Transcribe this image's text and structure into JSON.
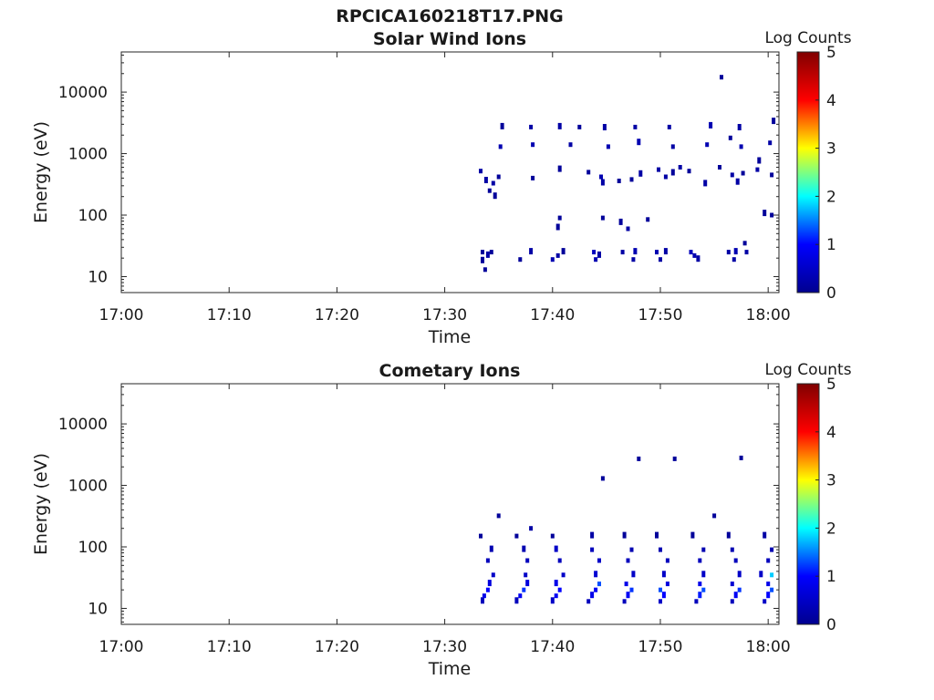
{
  "figure": {
    "title": "RPCICA160218T17.PNG"
  },
  "chart_data": [
    {
      "type": "heatmap",
      "title": "Solar Wind Ions",
      "xlabel": "Time",
      "ylabel": "Energy (eV)",
      "x_range": [
        "17:00",
        "18:01"
      ],
      "x_ticks": [
        "17:00",
        "17:10",
        "17:20",
        "17:30",
        "17:40",
        "17:50",
        "18:00"
      ],
      "y_scale": "log",
      "y_range": [
        5.5,
        45000
      ],
      "y_ticks": [
        "10",
        "100",
        "1000",
        "10000"
      ],
      "colorbar": {
        "label": "Log Counts",
        "range": [
          0,
          5
        ],
        "ticks": [
          "0",
          "1",
          "2",
          "3",
          "4",
          "5"
        ]
      },
      "colormap": [
        "#00008f",
        "#0000ff",
        "#00ffff",
        "#ffff00",
        "#ff0000",
        "#800000"
      ],
      "cells": [
        [
          "17:33:30",
          18,
          0.1
        ],
        [
          "17:33:30",
          25,
          0.1
        ],
        [
          "17:33:45",
          13,
          0.1
        ],
        [
          "17:34:00",
          22,
          0.2
        ],
        [
          "17:34:20",
          25,
          0.1
        ],
        [
          "17:37:00",
          19,
          0.1
        ],
        [
          "17:38:00",
          25,
          0.2
        ],
        [
          "17:40:00",
          19,
          0.3
        ],
        [
          "17:40:30",
          22,
          0.2
        ],
        [
          "17:41:00",
          25,
          0.1
        ],
        [
          "17:43:50",
          25,
          0.4
        ],
        [
          "17:44:00",
          19,
          0.3
        ],
        [
          "17:44:20",
          22,
          0.2
        ],
        [
          "17:46:30",
          25,
          0.2
        ],
        [
          "17:47:30",
          19,
          0.2
        ],
        [
          "17:47:40",
          25,
          0.3
        ],
        [
          "17:49:40",
          25,
          0.3
        ],
        [
          "17:50:00",
          19,
          0.2
        ],
        [
          "17:50:30",
          25,
          0.2
        ],
        [
          "17:52:50",
          25,
          0.4
        ],
        [
          "17:53:10",
          22,
          0.3
        ],
        [
          "17:53:30",
          19,
          0.2
        ],
        [
          "17:56:20",
          25,
          0.2
        ],
        [
          "17:56:50",
          19,
          0.2
        ],
        [
          "17:57:00",
          25,
          0.3
        ],
        [
          "17:57:50",
          35,
          0.1
        ],
        [
          "17:58:00",
          25,
          0.2
        ],
        [
          "17:40:30",
          62,
          0.1
        ],
        [
          "17:40:40",
          90,
          0.1
        ],
        [
          "17:44:40",
          90,
          0.1
        ],
        [
          "17:46:20",
          75,
          0.1
        ],
        [
          "17:47:00",
          60,
          0.2
        ],
        [
          "17:48:50",
          85,
          0.1
        ],
        [
          "17:59:40",
          105,
          0.1
        ],
        [
          "18:00:20",
          100,
          0.1
        ],
        [
          "17:33:20",
          520,
          0.2
        ],
        [
          "17:33:50",
          360,
          0.2
        ],
        [
          "17:34:10",
          250,
          0.1
        ],
        [
          "17:34:30",
          330,
          0.2
        ],
        [
          "17:34:40",
          200,
          0.1
        ],
        [
          "17:35:00",
          420,
          0.1
        ],
        [
          "17:38:10",
          400,
          0.1
        ],
        [
          "17:40:40",
          550,
          0.1
        ],
        [
          "17:43:20",
          500,
          0.1
        ],
        [
          "17:44:30",
          420,
          0.3
        ],
        [
          "17:44:40",
          330,
          0.2
        ],
        [
          "17:46:10",
          360,
          0.1
        ],
        [
          "17:47:20",
          380,
          0.1
        ],
        [
          "17:48:10",
          460,
          0.2
        ],
        [
          "17:49:50",
          550,
          0.2
        ],
        [
          "17:50:30",
          420,
          0.2
        ],
        [
          "17:51:10",
          480,
          0.1
        ],
        [
          "17:51:50",
          600,
          0.2
        ],
        [
          "17:52:40",
          520,
          0.1
        ],
        [
          "17:54:10",
          320,
          0.2
        ],
        [
          "17:55:30",
          600,
          0.1
        ],
        [
          "17:56:40",
          450,
          0.2
        ],
        [
          "17:57:10",
          340,
          0.2
        ],
        [
          "17:57:40",
          480,
          0.1
        ],
        [
          "17:59:00",
          550,
          0.2
        ],
        [
          "17:59:10",
          750,
          0.1
        ],
        [
          "18:00:20",
          450,
          0.1
        ],
        [
          "17:35:10",
          1300,
          0.3
        ],
        [
          "17:35:20",
          2700,
          0.1
        ],
        [
          "17:38:10",
          1400,
          0.3
        ],
        [
          "17:38:00",
          2700,
          0.2
        ],
        [
          "17:40:40",
          2700,
          0.2
        ],
        [
          "17:41:40",
          1400,
          0.2
        ],
        [
          "17:42:30",
          2700,
          0.1
        ],
        [
          "17:44:50",
          2600,
          0.2
        ],
        [
          "17:45:10",
          1300,
          0.3
        ],
        [
          "17:47:40",
          2700,
          0.2
        ],
        [
          "17:48:00",
          1500,
          0.3
        ],
        [
          "17:50:50",
          2700,
          0.2
        ],
        [
          "17:51:10",
          1300,
          0.2
        ],
        [
          "17:54:40",
          2800,
          0.3
        ],
        [
          "17:54:20",
          1400,
          0.3
        ],
        [
          "17:56:30",
          1800,
          0.1
        ],
        [
          "17:57:20",
          2600,
          0.2
        ],
        [
          "17:57:30",
          1300,
          0.3
        ],
        [
          "18:00:10",
          1500,
          0.2
        ],
        [
          "18:00:30",
          3300,
          0.1
        ],
        [
          "17:55:40",
          17500,
          0.1
        ]
      ]
    },
    {
      "type": "heatmap",
      "title": "Cometary Ions",
      "xlabel": "Time",
      "ylabel": "Energy (eV)",
      "x_range": [
        "17:00",
        "18:01"
      ],
      "x_ticks": [
        "17:00",
        "17:10",
        "17:20",
        "17:30",
        "17:40",
        "17:50",
        "18:00"
      ],
      "y_scale": "log",
      "y_range": [
        5.5,
        45000
      ],
      "y_ticks": [
        "10",
        "100",
        "1000",
        "10000"
      ],
      "colorbar": {
        "label": "Log Counts",
        "range": [
          0,
          5
        ],
        "ticks": [
          "0",
          "1",
          "2",
          "3",
          "4",
          "5"
        ]
      },
      "colormap": [
        "#00008f",
        "#0000ff",
        "#00ffff",
        "#ffff00",
        "#ff0000",
        "#800000"
      ],
      "cells": [
        [
          "17:33:30",
          13,
          0.4
        ],
        [
          "17:33:40",
          16,
          0.8
        ],
        [
          "17:34:00",
          20,
          1.0
        ],
        [
          "17:34:10",
          25,
          0.7
        ],
        [
          "17:34:30",
          35,
          0.5
        ],
        [
          "17:34:00",
          60,
          0.4
        ],
        [
          "17:34:20",
          90,
          0.3
        ],
        [
          "17:33:20",
          150,
          0.1
        ],
        [
          "17:35:00",
          320,
          0.1
        ],
        [
          "17:36:40",
          13,
          0.4
        ],
        [
          "17:37:00",
          16,
          0.9
        ],
        [
          "17:37:20",
          20,
          1.2
        ],
        [
          "17:37:40",
          25,
          0.7
        ],
        [
          "17:37:30",
          35,
          0.5
        ],
        [
          "17:37:40",
          60,
          0.4
        ],
        [
          "17:37:20",
          90,
          0.3
        ],
        [
          "17:36:40",
          150,
          0.1
        ],
        [
          "17:38:00",
          200,
          0.2
        ],
        [
          "17:40:00",
          13,
          0.5
        ],
        [
          "17:40:20",
          16,
          0.9
        ],
        [
          "17:40:40",
          20,
          1.0
        ],
        [
          "17:40:20",
          25,
          0.8
        ],
        [
          "17:41:00",
          35,
          0.5
        ],
        [
          "17:40:40",
          60,
          0.4
        ],
        [
          "17:40:20",
          90,
          0.5
        ],
        [
          "17:40:00",
          150,
          0.1
        ],
        [
          "17:43:20",
          13,
          0.4
        ],
        [
          "17:43:40",
          16,
          0.8
        ],
        [
          "17:44:00",
          20,
          0.9
        ],
        [
          "17:44:20",
          25,
          1.3
        ],
        [
          "17:44:00",
          35,
          0.6
        ],
        [
          "17:44:20",
          60,
          0.5
        ],
        [
          "17:43:40",
          90,
          0.4
        ],
        [
          "17:43:40",
          150,
          0.2
        ],
        [
          "17:44:40",
          1300,
          0.1
        ],
        [
          "17:46:40",
          13,
          0.4
        ],
        [
          "17:47:00",
          16,
          0.9
        ],
        [
          "17:47:20",
          20,
          1.2
        ],
        [
          "17:46:50",
          25,
          0.8
        ],
        [
          "17:47:30",
          35,
          0.5
        ],
        [
          "17:47:00",
          60,
          0.4
        ],
        [
          "17:47:20",
          90,
          0.3
        ],
        [
          "17:46:40",
          150,
          0.1
        ],
        [
          "17:48:00",
          2700,
          0.1
        ],
        [
          "17:50:00",
          13,
          0.5
        ],
        [
          "17:50:20",
          16,
          1.0
        ],
        [
          "17:50:00",
          20,
          1.3
        ],
        [
          "17:50:40",
          25,
          0.7
        ],
        [
          "17:50:20",
          35,
          0.5
        ],
        [
          "17:50:40",
          60,
          0.4
        ],
        [
          "17:50:00",
          90,
          0.3
        ],
        [
          "17:49:40",
          150,
          0.1
        ],
        [
          "17:51:20",
          2700,
          0.1
        ],
        [
          "17:53:20",
          13,
          0.4
        ],
        [
          "17:53:40",
          16,
          1.1
        ],
        [
          "17:54:00",
          20,
          1.3
        ],
        [
          "17:53:40",
          25,
          0.8
        ],
        [
          "17:54:00",
          35,
          0.5
        ],
        [
          "17:53:40",
          60,
          0.4
        ],
        [
          "17:54:00",
          90,
          0.3
        ],
        [
          "17:53:00",
          150,
          0.1
        ],
        [
          "17:55:00",
          320,
          0.1
        ],
        [
          "17:56:40",
          13,
          0.4
        ],
        [
          "17:57:00",
          16,
          0.9
        ],
        [
          "17:57:20",
          20,
          1.2
        ],
        [
          "17:56:40",
          25,
          0.6
        ],
        [
          "17:57:20",
          35,
          0.5
        ],
        [
          "17:57:00",
          60,
          0.4
        ],
        [
          "17:56:40",
          90,
          0.3
        ],
        [
          "17:56:20",
          150,
          0.1
        ],
        [
          "17:57:30",
          2800,
          0.1
        ],
        [
          "17:59:40",
          13,
          0.5
        ],
        [
          "18:00:00",
          16,
          1.0
        ],
        [
          "18:00:20",
          20,
          1.3
        ],
        [
          "18:00:00",
          25,
          0.8
        ],
        [
          "17:59:20",
          35,
          0.5
        ],
        [
          "18:00:00",
          60,
          0.4
        ],
        [
          "18:00:20",
          90,
          0.3
        ],
        [
          "17:59:40",
          150,
          0.2
        ],
        [
          "18:00:20",
          35,
          1.8
        ]
      ]
    }
  ]
}
